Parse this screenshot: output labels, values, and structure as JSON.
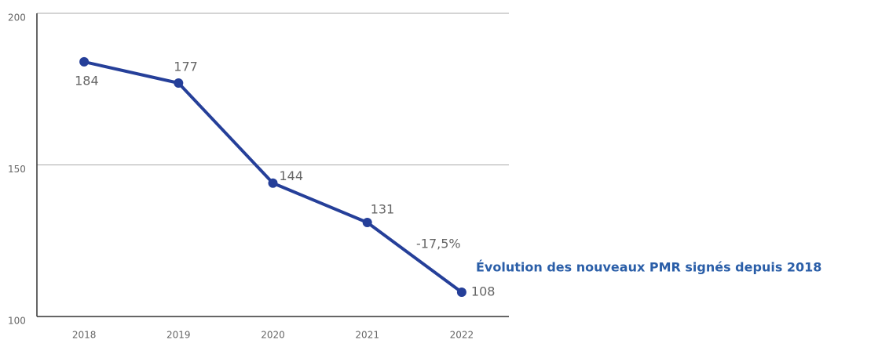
{
  "chart_data": {
    "type": "line",
    "title": "Évolution des nouveaux PMR signés depuis 2018",
    "annotation": "-17,5%",
    "categories": [
      "2018",
      "2019",
      "2020",
      "2021",
      "2022"
    ],
    "series": [
      {
        "color": "#253f99",
        "values": [
          184,
          177,
          144,
          131,
          108
        ]
      }
    ],
    "ylim": [
      100,
      200
    ],
    "yticks": [
      100,
      150,
      200
    ],
    "grid": true
  }
}
